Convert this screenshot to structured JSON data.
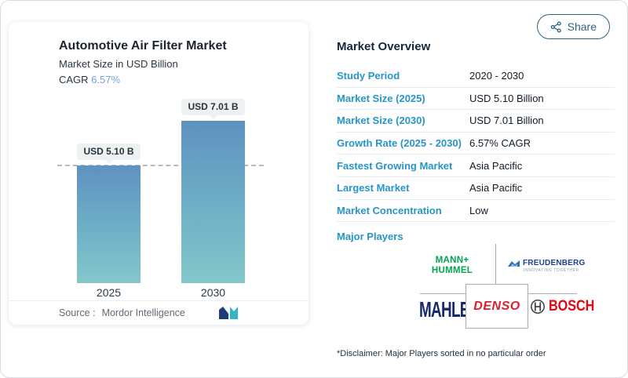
{
  "header": {
    "share_label": "Share"
  },
  "chart": {
    "title": "Automotive Air Filter Market",
    "subtitle": "Market Size in USD Billion",
    "cagr_label": "CAGR",
    "cagr_value": "6.57%",
    "source_label": "Source :",
    "source_name": "Mordor Intelligence"
  },
  "chart_data": {
    "type": "bar",
    "title": "Automotive Air Filter Market",
    "subtitle": "Market Size in USD Billion",
    "cagr": "6.57%",
    "categories": [
      "2025",
      "2030"
    ],
    "values": [
      5.1,
      7.01
    ],
    "bar_labels": [
      "USD 5.10 B",
      "USD 7.01 B"
    ],
    "ylabel": "Market Size in USD Billion",
    "ylim": [
      0,
      8
    ],
    "reference_line": 5.1,
    "grid": "off",
    "bar_gradient": [
      "#5e92c0",
      "#84c7ca"
    ]
  },
  "overview": {
    "title": "Market Overview",
    "rows": [
      {
        "label": "Study Period",
        "value": "2020 - 2030"
      },
      {
        "label": "Market Size (2025)",
        "value": "USD 5.10 Billion"
      },
      {
        "label": "Market Size (2030)",
        "value": "USD 7.01 Billion"
      },
      {
        "label": "Growth Rate (2025 - 2030)",
        "value": "6.57% CAGR"
      },
      {
        "label": "Fastest Growing Market",
        "value": "Asia Pacific"
      },
      {
        "label": "Largest Market",
        "value": "Asia Pacific"
      },
      {
        "label": "Market Concentration",
        "value": "Low"
      }
    ],
    "major_players_label": "Major Players",
    "players": {
      "mann_hummel_line1": "MANN+",
      "mann_hummel_line2": "HUMMEL",
      "freudenberg": "FREUDENBERG",
      "freudenberg_tagline": "INNOVATING TOGETHER",
      "mahle": "MAHLE",
      "denso": "DENSO",
      "bosch": "BOSCH"
    },
    "disclaimer": "*Disclaimer: Major Players sorted in no particular order"
  },
  "colors": {
    "accent_label_blue": "#2795c9",
    "navy_text": "#13293d",
    "cagr_blue": "#76a5d8",
    "share_teal": "#2e6579",
    "mann_green": "#00a651",
    "freudenberg_navy": "#1c3f8f",
    "mahle_navy": "#17286e",
    "denso_red": "#dc1f2e",
    "bosch_red": "#e30613",
    "badge_bg": "#eef1f1",
    "dash_gray": "#b4bac0"
  }
}
